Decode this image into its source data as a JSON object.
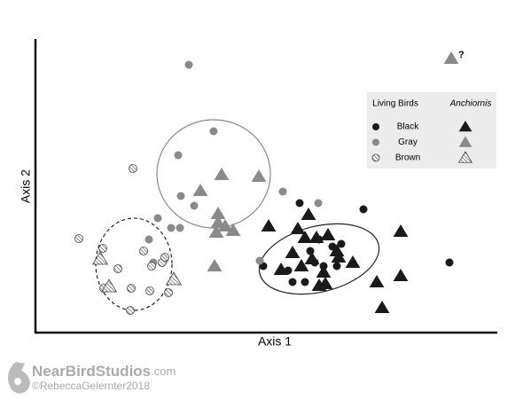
{
  "chart_data": {
    "type": "scatter",
    "x_label": "Axis 1",
    "y_label": "Axis 2",
    "xlim": [
      0,
      520
    ],
    "ylim": [
      0,
      330
    ],
    "group_labels": [
      "Living Birds",
      "Anchiornis"
    ],
    "series": [
      {
        "name": "Black",
        "color": "#1a1a1a",
        "fill": "solid",
        "living": {
          "x": [
            298,
            370,
            257,
            290,
            304,
            315,
            320,
            335,
            345,
            310,
            325,
            467,
            340,
            285
          ],
          "y": [
            146,
            139,
            75,
            57,
            57,
            79,
            105,
            97,
            100,
            92,
            75,
            79,
            75,
            70
          ]
        },
        "anchiornis": {
          "x": [
            263,
            308,
            296,
            304,
            317,
            312,
            330,
            340,
            358,
            277,
            300,
            325,
            320,
            385,
            412,
            391,
            412,
            342,
            327,
            290
          ],
          "y": [
            120,
            133,
            117,
            107,
            107,
            83,
            110,
            92,
            79,
            71,
            75,
            68,
            53,
            57,
            64,
            28,
            114,
            85,
            55,
            90
          ]
        }
      },
      {
        "name": "Gray",
        "color": "#8a8a8a",
        "fill": "solid",
        "living": {
          "x": [
            173,
            201,
            164,
            179,
            153,
            161,
            138,
            128,
            163,
            279,
            319,
            253,
            133,
            146
          ],
          "y": [
            302,
            227,
            154,
            143,
            118,
            200,
            129,
            105,
            118,
            159,
            146,
            81,
            79,
            83
          ]
        },
        "anchiornis": {
          "x": [
            210,
            186,
            252,
            206,
            206,
            214,
            223,
            204,
            202,
            469
          ],
          "y": [
            178,
            160,
            176,
            134,
            124,
            120,
            115,
            113,
            75,
            309
          ]
        }
      },
      {
        "name": "Brown",
        "color": "#444444",
        "fill": "hatch",
        "living": {
          "x": [
            110,
            49,
            76,
            122,
            93,
            131,
            143,
            77,
            108,
            129,
            150,
            107,
            146
          ],
          "y": [
            185,
            106,
            95,
            92,
            72,
            75,
            79,
            50,
            50,
            47,
            45,
            25,
            85
          ]
        },
        "anchiornis": {
          "x": [
            73,
            83,
            156
          ],
          "y": [
            83,
            52,
            60
          ]
        }
      }
    ],
    "annotations": [
      {
        "text": "?",
        "series": 1,
        "index": 9
      }
    ]
  },
  "watermark": {
    "brand": "NearBirdStudios",
    "suffix": ".com",
    "credit": "©RebeccaGelernter2018"
  }
}
